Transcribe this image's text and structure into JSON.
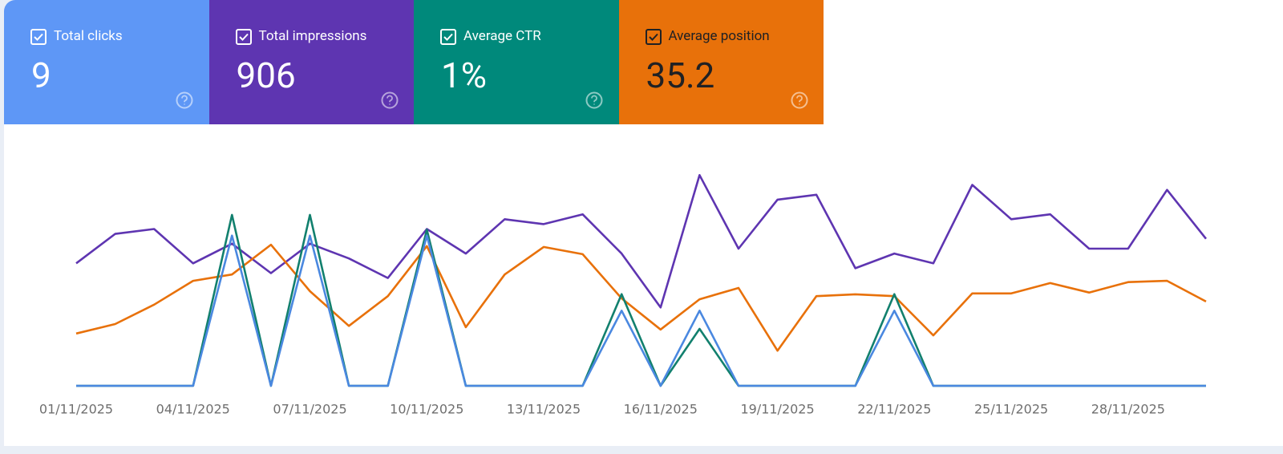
{
  "chart_data": {
    "type": "line",
    "categories": [
      "01/11/2025",
      null,
      null,
      "04/11/2025",
      null,
      null,
      "07/11/2025",
      null,
      null,
      "10/11/2025",
      null,
      null,
      "13/11/2025",
      null,
      null,
      "16/11/2025",
      null,
      null,
      "19/11/2025",
      null,
      null,
      "22/11/2025",
      null,
      null,
      "25/11/2025",
      null,
      null,
      "28/11/2025",
      null,
      null
    ],
    "series": [
      {
        "name": "Total clicks",
        "total": 9,
        "card_color": "#5e97f6",
        "color": "#4a88e0",
        "ylim": [
          0,
          3
        ],
        "values": [
          0,
          0,
          0,
          0,
          2,
          0,
          2,
          0,
          0,
          2,
          0,
          0,
          0,
          0,
          1,
          0,
          1,
          0,
          0,
          0,
          0,
          1,
          0,
          0,
          0,
          0,
          0,
          0,
          0,
          0
        ]
      },
      {
        "name": "Total impressions",
        "total": 906,
        "card_color": "#5e35b1",
        "color": "#5e35b1",
        "ylim": [
          0,
          46
        ],
        "values": [
          25,
          31,
          32,
          25,
          29,
          23,
          29,
          26,
          22,
          32,
          27,
          34,
          33,
          35,
          27,
          16,
          43,
          28,
          38,
          39,
          24,
          27,
          25,
          41,
          34,
          35,
          28,
          28,
          40,
          30
        ]
      },
      {
        "name": "Average CTR",
        "total": {
          "value": 1,
          "label": "1%"
        },
        "card_color": "#00897b",
        "color": "#12806e",
        "ylim": [
          0,
          9.1
        ],
        "values": [
          0,
          0,
          0,
          0,
          6.9,
          0,
          6.9,
          0,
          0,
          6.3,
          0,
          0,
          0,
          0,
          3.7,
          0,
          2.3,
          0,
          0,
          0,
          0,
          3.7,
          0,
          0,
          0,
          0,
          0,
          0,
          0,
          0
        ]
      },
      {
        "name": "Average position",
        "total": 35.2,
        "card_color": "#e8710a",
        "color": "#e8710a",
        "ylim": [
          55.5,
          5.5
        ],
        "values": [
          43.9,
          41.8,
          37.5,
          32.2,
          30.8,
          24.2,
          34.5,
          42.2,
          35.6,
          24.5,
          42.5,
          30.8,
          24.7,
          26.3,
          36.1,
          43.0,
          36.3,
          33.8,
          47.7,
          35.6,
          35.2,
          35.6,
          44.3,
          35.0,
          35.0,
          32.7,
          34.8,
          32.5,
          32.2,
          36.8
        ]
      }
    ]
  }
}
